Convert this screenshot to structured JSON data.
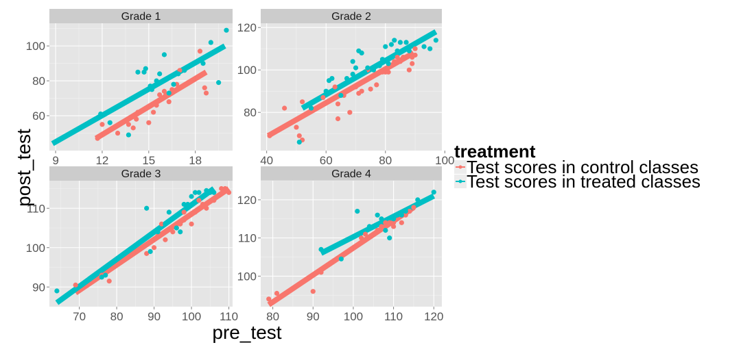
{
  "chart_data": {
    "type": "scatter",
    "xlabel": "pre_test",
    "ylabel": "post_test",
    "grid": true,
    "legend_position": "right",
    "legend": {
      "title": "treatment",
      "entries": [
        {
          "label": "Test scores in control classes",
          "color": "#F8766D"
        },
        {
          "label": "Test scores in treated classes",
          "color": "#00BFC4"
        }
      ]
    },
    "panels": [
      {
        "title": "Grade 1",
        "xlim": [
          8.6,
          20.4
        ],
        "ylim": [
          40,
          113
        ],
        "xticks": [
          9,
          12,
          15,
          18
        ],
        "yticks": [
          60,
          80,
          100
        ],
        "series": [
          {
            "color": "#F8766D",
            "points": [
              [
                11.7,
                47
              ],
              [
                12.0,
                55
              ],
              [
                12.5,
                52
              ],
              [
                13.0,
                50
              ],
              [
                13.7,
                55
              ],
              [
                14.0,
                53
              ],
              [
                14.2,
                58
              ],
              [
                14.3,
                62
              ],
              [
                14.8,
                64
              ],
              [
                15.0,
                56
              ],
              [
                15.3,
                62
              ],
              [
                15.5,
                66
              ],
              [
                15.7,
                72
              ],
              [
                15.9,
                70
              ],
              [
                16.0,
                74
              ],
              [
                16.1,
                72
              ],
              [
                16.3,
                68
              ],
              [
                16.5,
                75
              ],
              [
                16.8,
                78
              ],
              [
                17.0,
                86
              ],
              [
                18.3,
                97
              ],
              [
                18.6,
                76
              ],
              [
                18.7,
                73
              ]
            ],
            "fit": [
              [
                11.6,
                47
              ],
              [
                18.7,
                85
              ]
            ]
          },
          {
            "color": "#00BFC4",
            "points": [
              [
                11.9,
                61
              ],
              [
                12.5,
                56
              ],
              [
                13.7,
                49
              ],
              [
                14.3,
                85
              ],
              [
                14.7,
                85
              ],
              [
                14.8,
                87
              ],
              [
                15.1,
                77
              ],
              [
                15.2,
                75
              ],
              [
                15.5,
                80
              ],
              [
                15.7,
                84
              ],
              [
                16.0,
                95
              ],
              [
                16.3,
                73
              ],
              [
                16.6,
                78
              ],
              [
                16.9,
                84
              ],
              [
                17.3,
                86
              ],
              [
                18.5,
                90
              ],
              [
                19.0,
                102
              ],
              [
                19.5,
                79
              ],
              [
                20.0,
                109
              ]
            ],
            "fit": [
              [
                8.8,
                44
              ],
              [
                19.9,
                100
              ]
            ]
          }
        ]
      },
      {
        "title": "Grade 2",
        "xlim": [
          38,
          99
        ],
        "ylim": [
          62,
          122
        ],
        "xticks": [
          40,
          60,
          80,
          100
        ],
        "yticks": [
          80,
          100,
          120
        ],
        "series": [
          {
            "color": "#F8766D",
            "points": [
              [
                41,
                69
              ],
              [
                46,
                82
              ],
              [
                50,
                73
              ],
              [
                51,
                69
              ],
              [
                52,
                67
              ],
              [
                52,
                85
              ],
              [
                55,
                82
              ],
              [
                59,
                87
              ],
              [
                63,
                92
              ],
              [
                64,
                84
              ],
              [
                64,
                77
              ],
              [
                66,
                88
              ],
              [
                68,
                80
              ],
              [
                70,
                92
              ],
              [
                71,
                89
              ],
              [
                72,
                90
              ],
              [
                74,
                100
              ],
              [
                75,
                91
              ],
              [
                77,
                93
              ],
              [
                78,
                99
              ],
              [
                79,
                99
              ],
              [
                80,
                99
              ],
              [
                81,
                99
              ],
              [
                82,
                102
              ],
              [
                83,
                104
              ],
              [
                84,
                106
              ],
              [
                85,
                104
              ],
              [
                86,
                106
              ],
              [
                88,
                100
              ],
              [
                89,
                103
              ],
              [
                89,
                106
              ],
              [
                90,
                107
              ],
              [
                90,
                110
              ]
            ],
            "fit": [
              [
                40.5,
                69
              ],
              [
                89.5,
                108
              ]
            ]
          },
          {
            "color": "#00BFC4",
            "points": [
              [
                51,
                66
              ],
              [
                55,
                82
              ],
              [
                60,
                90
              ],
              [
                61,
                95
              ],
              [
                62,
                96
              ],
              [
                65,
                88
              ],
              [
                67,
                96
              ],
              [
                69,
                104
              ],
              [
                69,
                98
              ],
              [
                70,
                101
              ],
              [
                71,
                109
              ],
              [
                72,
                108
              ],
              [
                73,
                99
              ],
              [
                74,
                101
              ],
              [
                76,
                100
              ],
              [
                77,
                102
              ],
              [
                78,
                102
              ],
              [
                79,
                105
              ],
              [
                80,
                111
              ],
              [
                81,
                103
              ],
              [
                82,
                112
              ],
              [
                83,
                114
              ],
              [
                84,
                109
              ],
              [
                85,
                113
              ],
              [
                87,
                113
              ],
              [
                88,
                109
              ],
              [
                93,
                111
              ],
              [
                95,
                110
              ],
              [
                97,
                114
              ]
            ],
            "fit": [
              [
                52,
                82
              ],
              [
                97,
                118
              ]
            ]
          }
        ]
      },
      {
        "title": "Grade 3",
        "xlim": [
          62,
          111
        ],
        "ylim": [
          85,
          117
        ],
        "xticks": [
          70,
          80,
          90,
          100,
          110
        ],
        "yticks": [
          90,
          100,
          110
        ],
        "series": [
          {
            "color": "#F8766D",
            "points": [
              [
                69,
                90.5
              ],
              [
                76,
                93
              ],
              [
                78,
                91.5
              ],
              [
                88,
                98.5
              ],
              [
                90,
                100
              ],
              [
                91,
                103
              ],
              [
                92,
                106
              ],
              [
                93,
                102
              ],
              [
                95,
                104
              ],
              [
                96,
                105
              ],
              [
                97,
                106
              ],
              [
                98,
                107
              ],
              [
                98,
                109
              ],
              [
                99,
                108
              ],
              [
                100,
                106
              ],
              [
                101,
                109
              ],
              [
                102,
                112
              ],
              [
                103,
                111
              ],
              [
                104,
                110
              ],
              [
                106,
                112
              ],
              [
                108,
                115
              ],
              [
                109,
                115
              ],
              [
                110,
                114
              ]
            ],
            "fit": [
              [
                69,
                88.5
              ],
              [
                110,
                115
              ]
            ]
          },
          {
            "color": "#00BFC4",
            "points": [
              [
                64,
                89
              ],
              [
                76,
                92.5
              ],
              [
                77,
                93
              ],
              [
                88,
                110
              ],
              [
                89,
                99
              ],
              [
                91,
                104
              ],
              [
                93,
                106
              ],
              [
                94,
                109
              ],
              [
                96,
                105
              ],
              [
                97,
                104
              ],
              [
                98,
                111
              ],
              [
                99,
                111
              ],
              [
                100,
                113
              ],
              [
                101,
                114
              ],
              [
                102,
                114
              ],
              [
                103,
                113
              ],
              [
                104,
                114.5
              ],
              [
                105,
                114
              ],
              [
                106,
                114
              ]
            ],
            "fit": [
              [
                64,
                86
              ],
              [
                106,
                115
              ]
            ]
          }
        ]
      },
      {
        "title": "Grade 4",
        "xlim": [
          77,
          122
        ],
        "ylim": [
          92,
          125
        ],
        "xticks": [
          80,
          90,
          100,
          110,
          120
        ],
        "yticks": [
          100,
          110,
          120
        ],
        "series": [
          {
            "color": "#F8766D",
            "points": [
              [
                79,
                94
              ],
              [
                81,
                95.5
              ],
              [
                90,
                96
              ],
              [
                92,
                101
              ],
              [
                102,
                110
              ],
              [
                103,
                111
              ],
              [
                105,
                111
              ],
              [
                106,
                112
              ],
              [
                107,
                113
              ],
              [
                108,
                114
              ],
              [
                109,
                114
              ],
              [
                110,
                113
              ],
              [
                110,
                114
              ],
              [
                111,
                116
              ],
              [
                112,
                114
              ],
              [
                113,
                116
              ],
              [
                114,
                117
              ],
              [
                115,
                118
              ]
            ],
            "fit": [
              [
                79,
                92.5
              ],
              [
                115,
                118
              ]
            ]
          },
          {
            "color": "#00BFC4",
            "points": [
              [
                92,
                107
              ],
              [
                97,
                104.5
              ],
              [
                101,
                117
              ],
              [
                104,
                113
              ],
              [
                106,
                116
              ],
              [
                107,
                115
              ],
              [
                108,
                112
              ],
              [
                109,
                110
              ],
              [
                110,
                115
              ],
              [
                111,
                116
              ],
              [
                112,
                116
              ],
              [
                113,
                117
              ],
              [
                116,
                120
              ],
              [
                120,
                122
              ]
            ],
            "fit": [
              [
                92,
                106
              ],
              [
                120,
                121
              ]
            ]
          }
        ]
      }
    ]
  }
}
